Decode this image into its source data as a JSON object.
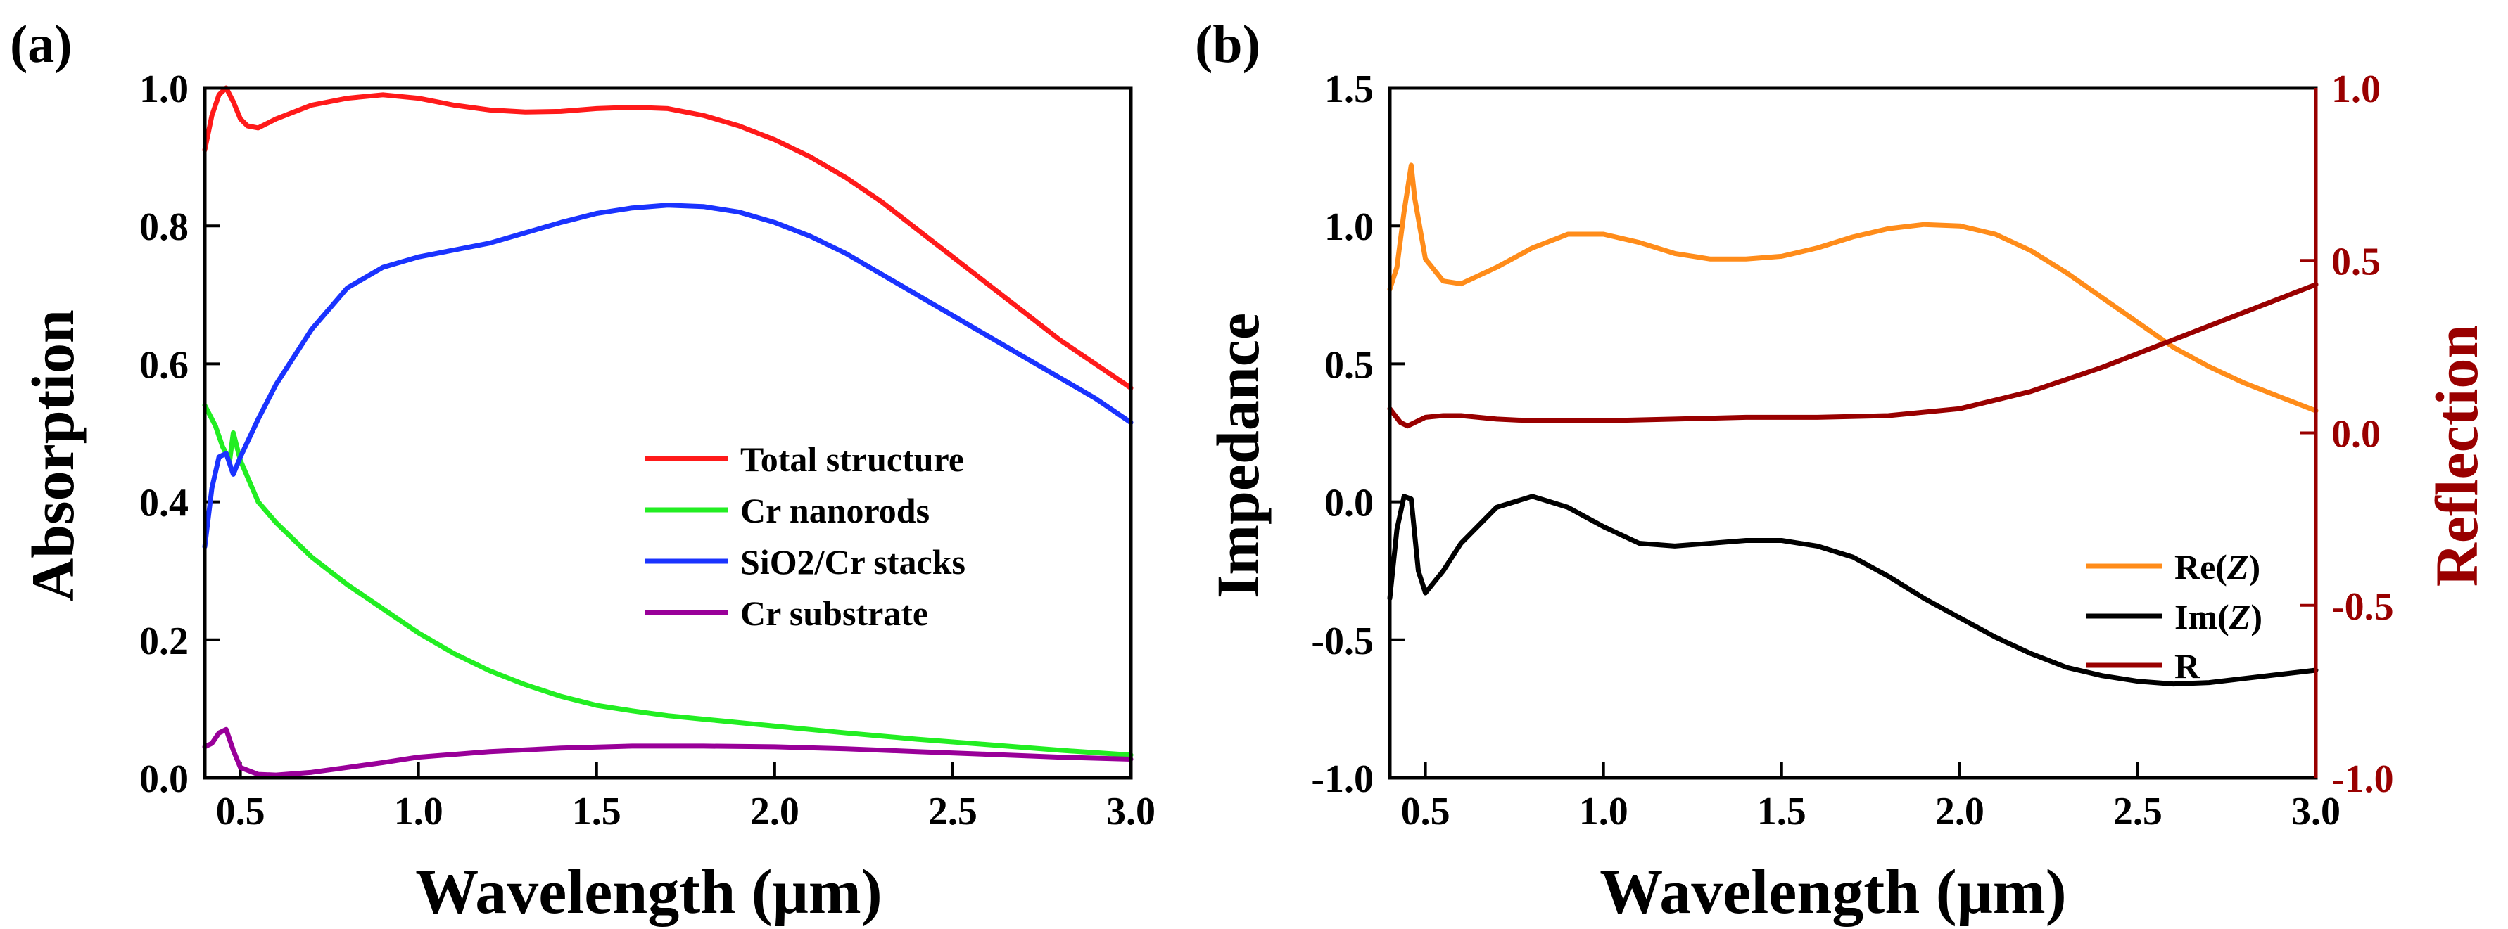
{
  "chart_data": [
    {
      "panel": "(a)",
      "type": "line",
      "xlabel": "Wavelength (μm)",
      "ylabel": "Absorption",
      "xlim": [
        0.4,
        3.0
      ],
      "ylim": [
        0.0,
        1.0
      ],
      "xticks": [
        0.5,
        1.0,
        1.5,
        2.0,
        2.5,
        3.0
      ],
      "xtick_labels": [
        "0.5",
        "1.0",
        "1.5",
        "2.0",
        "2.5",
        "3.0"
      ],
      "yticks": [
        0.0,
        0.2,
        0.4,
        0.6,
        0.8,
        1.0
      ],
      "ytick_labels": [
        "0.0",
        "0.2",
        "0.4",
        "0.6",
        "0.8",
        "1.0"
      ],
      "legend_position": "lower-right",
      "series": [
        {
          "name": "Total structure",
          "color": "#ff1a1a",
          "points": [
            [
              0.4,
              0.91
            ],
            [
              0.42,
              0.96
            ],
            [
              0.44,
              0.99
            ],
            [
              0.46,
              1.0
            ],
            [
              0.48,
              0.98
            ],
            [
              0.5,
              0.955
            ],
            [
              0.52,
              0.945
            ],
            [
              0.55,
              0.942
            ],
            [
              0.6,
              0.955
            ],
            [
              0.7,
              0.975
            ],
            [
              0.8,
              0.985
            ],
            [
              0.9,
              0.99
            ],
            [
              1.0,
              0.985
            ],
            [
              1.1,
              0.975
            ],
            [
              1.2,
              0.968
            ],
            [
              1.3,
              0.965
            ],
            [
              1.4,
              0.966
            ],
            [
              1.5,
              0.97
            ],
            [
              1.6,
              0.972
            ],
            [
              1.7,
              0.97
            ],
            [
              1.8,
              0.96
            ],
            [
              1.9,
              0.945
            ],
            [
              2.0,
              0.925
            ],
            [
              2.1,
              0.9
            ],
            [
              2.2,
              0.87
            ],
            [
              2.3,
              0.835
            ],
            [
              2.4,
              0.795
            ],
            [
              2.5,
              0.755
            ],
            [
              2.6,
              0.715
            ],
            [
              2.7,
              0.675
            ],
            [
              2.8,
              0.635
            ],
            [
              2.9,
              0.6
            ],
            [
              3.0,
              0.565
            ]
          ]
        },
        {
          "name": "Cr nanorods",
          "color": "#22ee22",
          "points": [
            [
              0.4,
              0.54
            ],
            [
              0.43,
              0.51
            ],
            [
              0.45,
              0.48
            ],
            [
              0.47,
              0.46
            ],
            [
              0.48,
              0.5
            ],
            [
              0.5,
              0.46
            ],
            [
              0.55,
              0.4
            ],
            [
              0.6,
              0.37
            ],
            [
              0.7,
              0.32
            ],
            [
              0.8,
              0.28
            ],
            [
              0.9,
              0.245
            ],
            [
              1.0,
              0.21
            ],
            [
              1.1,
              0.18
            ],
            [
              1.2,
              0.155
            ],
            [
              1.3,
              0.135
            ],
            [
              1.4,
              0.118
            ],
            [
              1.5,
              0.105
            ],
            [
              1.6,
              0.097
            ],
            [
              1.7,
              0.09
            ],
            [
              1.8,
              0.085
            ],
            [
              2.0,
              0.075
            ],
            [
              2.2,
              0.065
            ],
            [
              2.4,
              0.056
            ],
            [
              2.6,
              0.048
            ],
            [
              2.8,
              0.04
            ],
            [
              3.0,
              0.033
            ]
          ]
        },
        {
          "name": "SiO2/Cr stacks",
          "color": "#1a33ff",
          "points": [
            [
              0.4,
              0.335
            ],
            [
              0.42,
              0.42
            ],
            [
              0.44,
              0.465
            ],
            [
              0.46,
              0.47
            ],
            [
              0.48,
              0.44
            ],
            [
              0.5,
              0.465
            ],
            [
              0.55,
              0.52
            ],
            [
              0.6,
              0.57
            ],
            [
              0.7,
              0.65
            ],
            [
              0.8,
              0.71
            ],
            [
              0.9,
              0.74
            ],
            [
              1.0,
              0.755
            ],
            [
              1.1,
              0.765
            ],
            [
              1.2,
              0.775
            ],
            [
              1.3,
              0.79
            ],
            [
              1.4,
              0.805
            ],
            [
              1.5,
              0.818
            ],
            [
              1.6,
              0.826
            ],
            [
              1.7,
              0.83
            ],
            [
              1.8,
              0.828
            ],
            [
              1.9,
              0.82
            ],
            [
              2.0,
              0.805
            ],
            [
              2.1,
              0.785
            ],
            [
              2.2,
              0.76
            ],
            [
              2.3,
              0.73
            ],
            [
              2.4,
              0.7
            ],
            [
              2.5,
              0.67
            ],
            [
              2.6,
              0.64
            ],
            [
              2.7,
              0.61
            ],
            [
              2.8,
              0.58
            ],
            [
              2.9,
              0.55
            ],
            [
              3.0,
              0.515
            ]
          ]
        },
        {
          "name": "Cr substrate",
          "color": "#990099",
          "points": [
            [
              0.4,
              0.045
            ],
            [
              0.42,
              0.05
            ],
            [
              0.44,
              0.065
            ],
            [
              0.46,
              0.07
            ],
            [
              0.48,
              0.04
            ],
            [
              0.5,
              0.015
            ],
            [
              0.55,
              0.005
            ],
            [
              0.6,
              0.004
            ],
            [
              0.7,
              0.008
            ],
            [
              0.8,
              0.015
            ],
            [
              0.9,
              0.022
            ],
            [
              1.0,
              0.03
            ],
            [
              1.2,
              0.038
            ],
            [
              1.4,
              0.043
            ],
            [
              1.6,
              0.046
            ],
            [
              1.8,
              0.046
            ],
            [
              2.0,
              0.045
            ],
            [
              2.2,
              0.042
            ],
            [
              2.4,
              0.038
            ],
            [
              2.6,
              0.034
            ],
            [
              2.8,
              0.03
            ],
            [
              3.0,
              0.027
            ]
          ]
        }
      ]
    },
    {
      "panel": "(b)",
      "type": "line",
      "xlabel": "Wavelength (μm)",
      "ylabel": "Impedance",
      "y2label": "Reflection",
      "xlim": [
        0.4,
        3.0
      ],
      "ylim": [
        -1.0,
        1.5
      ],
      "y2lim": [
        -1.0,
        1.0
      ],
      "xticks": [
        0.5,
        1.0,
        1.5,
        2.0,
        2.5,
        3.0
      ],
      "xtick_labels": [
        "0.5",
        "1.0",
        "1.5",
        "2.0",
        "2.5",
        "3.0"
      ],
      "yticks": [
        -1.0,
        -0.5,
        0.0,
        0.5,
        1.0,
        1.5
      ],
      "ytick_labels": [
        "-1.0",
        "-0.5",
        "0.0",
        "0.5",
        "1.0",
        "1.5"
      ],
      "y2ticks": [
        -1.0,
        -0.5,
        0.0,
        0.5,
        1.0
      ],
      "y2tick_labels": [
        "-1.0",
        "-0.5",
        "0.0",
        "0.5",
        "1.0"
      ],
      "y2_color": "#990000",
      "legend_position": "lower-right",
      "series": [
        {
          "name": "Re(Z)",
          "legend_prefix": "Re(",
          "legend_var": "Z",
          "legend_suffix": ")",
          "axis": "left",
          "color": "#ff8c1a",
          "points": [
            [
              0.4,
              0.77
            ],
            [
              0.42,
              0.85
            ],
            [
              0.44,
              1.05
            ],
            [
              0.46,
              1.22
            ],
            [
              0.47,
              1.1
            ],
            [
              0.5,
              0.88
            ],
            [
              0.55,
              0.8
            ],
            [
              0.6,
              0.79
            ],
            [
              0.7,
              0.85
            ],
            [
              0.8,
              0.92
            ],
            [
              0.9,
              0.97
            ],
            [
              1.0,
              0.97
            ],
            [
              1.1,
              0.94
            ],
            [
              1.2,
              0.9
            ],
            [
              1.3,
              0.88
            ],
            [
              1.4,
              0.88
            ],
            [
              1.5,
              0.89
            ],
            [
              1.6,
              0.92
            ],
            [
              1.7,
              0.96
            ],
            [
              1.8,
              0.99
            ],
            [
              1.9,
              1.005
            ],
            [
              2.0,
              1.0
            ],
            [
              2.1,
              0.97
            ],
            [
              2.2,
              0.91
            ],
            [
              2.3,
              0.83
            ],
            [
              2.4,
              0.74
            ],
            [
              2.5,
              0.65
            ],
            [
              2.6,
              0.56
            ],
            [
              2.7,
              0.49
            ],
            [
              2.8,
              0.43
            ],
            [
              2.9,
              0.38
            ],
            [
              3.0,
              0.33
            ]
          ]
        },
        {
          "name": "Im(Z)",
          "legend_prefix": "Im(",
          "legend_var": "Z",
          "legend_suffix": ")",
          "axis": "left",
          "color": "#000000",
          "points": [
            [
              0.4,
              -0.35
            ],
            [
              0.42,
              -0.1
            ],
            [
              0.44,
              0.02
            ],
            [
              0.46,
              0.01
            ],
            [
              0.48,
              -0.25
            ],
            [
              0.5,
              -0.33
            ],
            [
              0.55,
              -0.25
            ],
            [
              0.6,
              -0.15
            ],
            [
              0.7,
              -0.02
            ],
            [
              0.8,
              0.02
            ],
            [
              0.9,
              -0.02
            ],
            [
              1.0,
              -0.09
            ],
            [
              1.1,
              -0.15
            ],
            [
              1.2,
              -0.16
            ],
            [
              1.3,
              -0.15
            ],
            [
              1.4,
              -0.14
            ],
            [
              1.5,
              -0.14
            ],
            [
              1.6,
              -0.16
            ],
            [
              1.7,
              -0.2
            ],
            [
              1.8,
              -0.27
            ],
            [
              1.9,
              -0.35
            ],
            [
              2.0,
              -0.42
            ],
            [
              2.1,
              -0.49
            ],
            [
              2.2,
              -0.55
            ],
            [
              2.3,
              -0.6
            ],
            [
              2.4,
              -0.63
            ],
            [
              2.5,
              -0.65
            ],
            [
              2.6,
              -0.66
            ],
            [
              2.7,
              -0.655
            ],
            [
              2.8,
              -0.64
            ],
            [
              2.9,
              -0.625
            ],
            [
              3.0,
              -0.61
            ]
          ]
        },
        {
          "name": "R",
          "legend_prefix": "R",
          "legend_var": "",
          "legend_suffix": "",
          "axis": "right",
          "color": "#990000",
          "points": [
            [
              0.4,
              0.07
            ],
            [
              0.43,
              0.03
            ],
            [
              0.45,
              0.02
            ],
            [
              0.47,
              0.03
            ],
            [
              0.5,
              0.045
            ],
            [
              0.55,
              0.05
            ],
            [
              0.6,
              0.05
            ],
            [
              0.7,
              0.04
            ],
            [
              0.8,
              0.035
            ],
            [
              0.9,
              0.035
            ],
            [
              1.0,
              0.035
            ],
            [
              1.2,
              0.04
            ],
            [
              1.4,
              0.045
            ],
            [
              1.6,
              0.045
            ],
            [
              1.8,
              0.05
            ],
            [
              2.0,
              0.07
            ],
            [
              2.2,
              0.12
            ],
            [
              2.4,
              0.19
            ],
            [
              2.6,
              0.27
            ],
            [
              2.8,
              0.35
            ],
            [
              3.0,
              0.43
            ]
          ]
        }
      ]
    }
  ]
}
